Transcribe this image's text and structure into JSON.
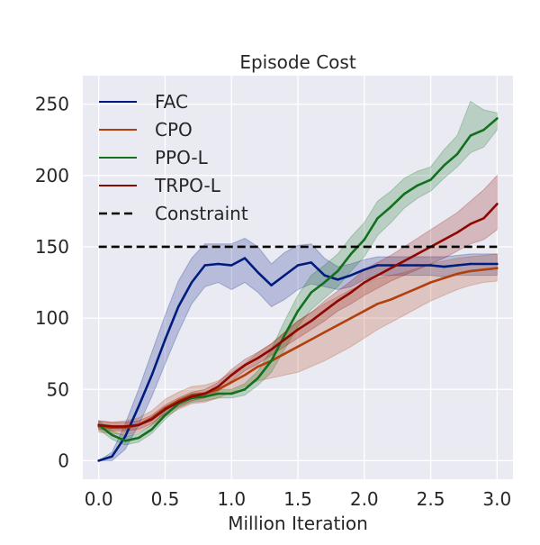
{
  "chart_data": {
    "type": "line",
    "title": "Episode Cost",
    "xlabel": "Million Iteration",
    "ylabel": "",
    "xlim": [
      -0.12,
      3.12
    ],
    "ylim": [
      -13,
      270
    ],
    "xticks": [
      0.0,
      0.5,
      1.0,
      1.5,
      2.0,
      2.5,
      3.0
    ],
    "xtick_labels": [
      "0.0",
      "0.5",
      "1.0",
      "1.5",
      "2.0",
      "2.5",
      "3.0"
    ],
    "yticks": [
      0,
      50,
      100,
      150,
      200,
      250
    ],
    "ytick_labels": [
      "0",
      "50",
      "100",
      "150",
      "200",
      "250"
    ],
    "grid": true,
    "legend_position": "top-left",
    "x": [
      0.0,
      0.1,
      0.2,
      0.3,
      0.4,
      0.5,
      0.6,
      0.7,
      0.8,
      0.9,
      1.0,
      1.1,
      1.2,
      1.3,
      1.4,
      1.5,
      1.6,
      1.7,
      1.8,
      1.9,
      2.0,
      2.1,
      2.2,
      2.3,
      2.4,
      2.5,
      2.6,
      2.7,
      2.8,
      2.9,
      3.0
    ],
    "series": [
      {
        "name": "FAC",
        "color": "#001c7f",
        "values": [
          0,
          3,
          17,
          38,
          60,
          85,
          108,
          125,
          137,
          138,
          137,
          142,
          132,
          123,
          130,
          137,
          139,
          130,
          127,
          130,
          134,
          137,
          137,
          137,
          137,
          137,
          136,
          137,
          138,
          138,
          138
        ],
        "band_lower": [
          0,
          0,
          8,
          25,
          45,
          68,
          90,
          110,
          122,
          125,
          120,
          125,
          118,
          108,
          113,
          120,
          124,
          122,
          120,
          122,
          127,
          130,
          130,
          130,
          130,
          130,
          129,
          130,
          130,
          130,
          130
        ],
        "band_upper": [
          0,
          6,
          26,
          50,
          76,
          102,
          126,
          142,
          152,
          152,
          152,
          156,
          150,
          138,
          146,
          151,
          152,
          142,
          136,
          138,
          141,
          143,
          143,
          143,
          143,
          143,
          143,
          144,
          145,
          145,
          145
        ]
      },
      {
        "name": "CPO",
        "color": "#b1400d",
        "values": [
          24,
          23,
          23,
          25,
          30,
          37,
          42,
          46,
          47,
          50,
          55,
          60,
          66,
          70,
          75,
          80,
          85,
          90,
          95,
          100,
          105,
          110,
          113,
          117,
          121,
          125,
          128,
          131,
          133,
          134,
          135
        ],
        "band_lower": [
          20,
          19,
          18,
          20,
          25,
          31,
          36,
          40,
          41,
          44,
          48,
          52,
          56,
          58,
          60,
          62,
          66,
          70,
          75,
          80,
          86,
          92,
          97,
          102,
          107,
          112,
          116,
          120,
          123,
          125,
          126
        ],
        "band_upper": [
          28,
          27,
          28,
          30,
          35,
          43,
          48,
          52,
          53,
          56,
          62,
          68,
          76,
          82,
          90,
          98,
          104,
          110,
          115,
          120,
          124,
          128,
          130,
          132,
          135,
          138,
          140,
          142,
          143,
          144,
          145
        ]
      },
      {
        "name": "PPO-L",
        "color": "#12711c",
        "values": [
          25,
          18,
          14,
          16,
          22,
          32,
          40,
          44,
          45,
          47,
          47,
          50,
          58,
          70,
          88,
          105,
          118,
          125,
          133,
          145,
          155,
          170,
          178,
          187,
          193,
          197,
          207,
          215,
          228,
          232,
          240
        ],
        "band_lower": [
          22,
          15,
          11,
          13,
          19,
          29,
          37,
          41,
          42,
          44,
          44,
          46,
          53,
          62,
          78,
          94,
          106,
          114,
          122,
          133,
          143,
          158,
          167,
          177,
          184,
          189,
          198,
          206,
          216,
          220,
          232
        ],
        "band_upper": [
          28,
          21,
          17,
          19,
          25,
          35,
          43,
          47,
          48,
          50,
          50,
          54,
          63,
          78,
          98,
          116,
          130,
          137,
          145,
          157,
          167,
          182,
          189,
          198,
          203,
          206,
          218,
          228,
          252,
          246,
          244
        ]
      },
      {
        "name": "TRPO-L",
        "color": "#8c0800",
        "values": [
          25,
          24,
          24,
          25,
          29,
          36,
          41,
          45,
          47,
          52,
          60,
          67,
          72,
          78,
          85,
          92,
          98,
          105,
          112,
          118,
          125,
          130,
          135,
          140,
          145,
          150,
          155,
          160,
          166,
          170,
          180
        ],
        "band_lower": [
          22,
          21,
          21,
          22,
          26,
          33,
          38,
          42,
          44,
          49,
          56,
          63,
          68,
          74,
          80,
          86,
          92,
          98,
          105,
          110,
          116,
          121,
          126,
          130,
          134,
          138,
          142,
          147,
          152,
          155,
          162
        ],
        "band_upper": [
          28,
          27,
          27,
          28,
          32,
          39,
          44,
          48,
          50,
          55,
          64,
          71,
          76,
          82,
          90,
          98,
          104,
          112,
          119,
          126,
          134,
          139,
          144,
          150,
          156,
          162,
          168,
          174,
          182,
          190,
          200
        ]
      }
    ],
    "reference_lines": [
      {
        "name": "Constraint",
        "y": 150,
        "x_range": [
          0.0,
          3.0
        ],
        "style": "dashed",
        "color": "#000000"
      }
    ],
    "legend": [
      {
        "label": "FAC",
        "color": "#001c7f",
        "style": "solid"
      },
      {
        "label": "CPO",
        "color": "#b1400d",
        "style": "solid"
      },
      {
        "label": "PPO-L",
        "color": "#12711c",
        "style": "solid"
      },
      {
        "label": "TRPO-L",
        "color": "#8c0800",
        "style": "solid"
      },
      {
        "label": "Constraint",
        "color": "#000000",
        "style": "dashed"
      }
    ],
    "colors": {
      "plot_background": "#eaeaf2",
      "grid": "#ffffff",
      "text": "#262626"
    }
  }
}
